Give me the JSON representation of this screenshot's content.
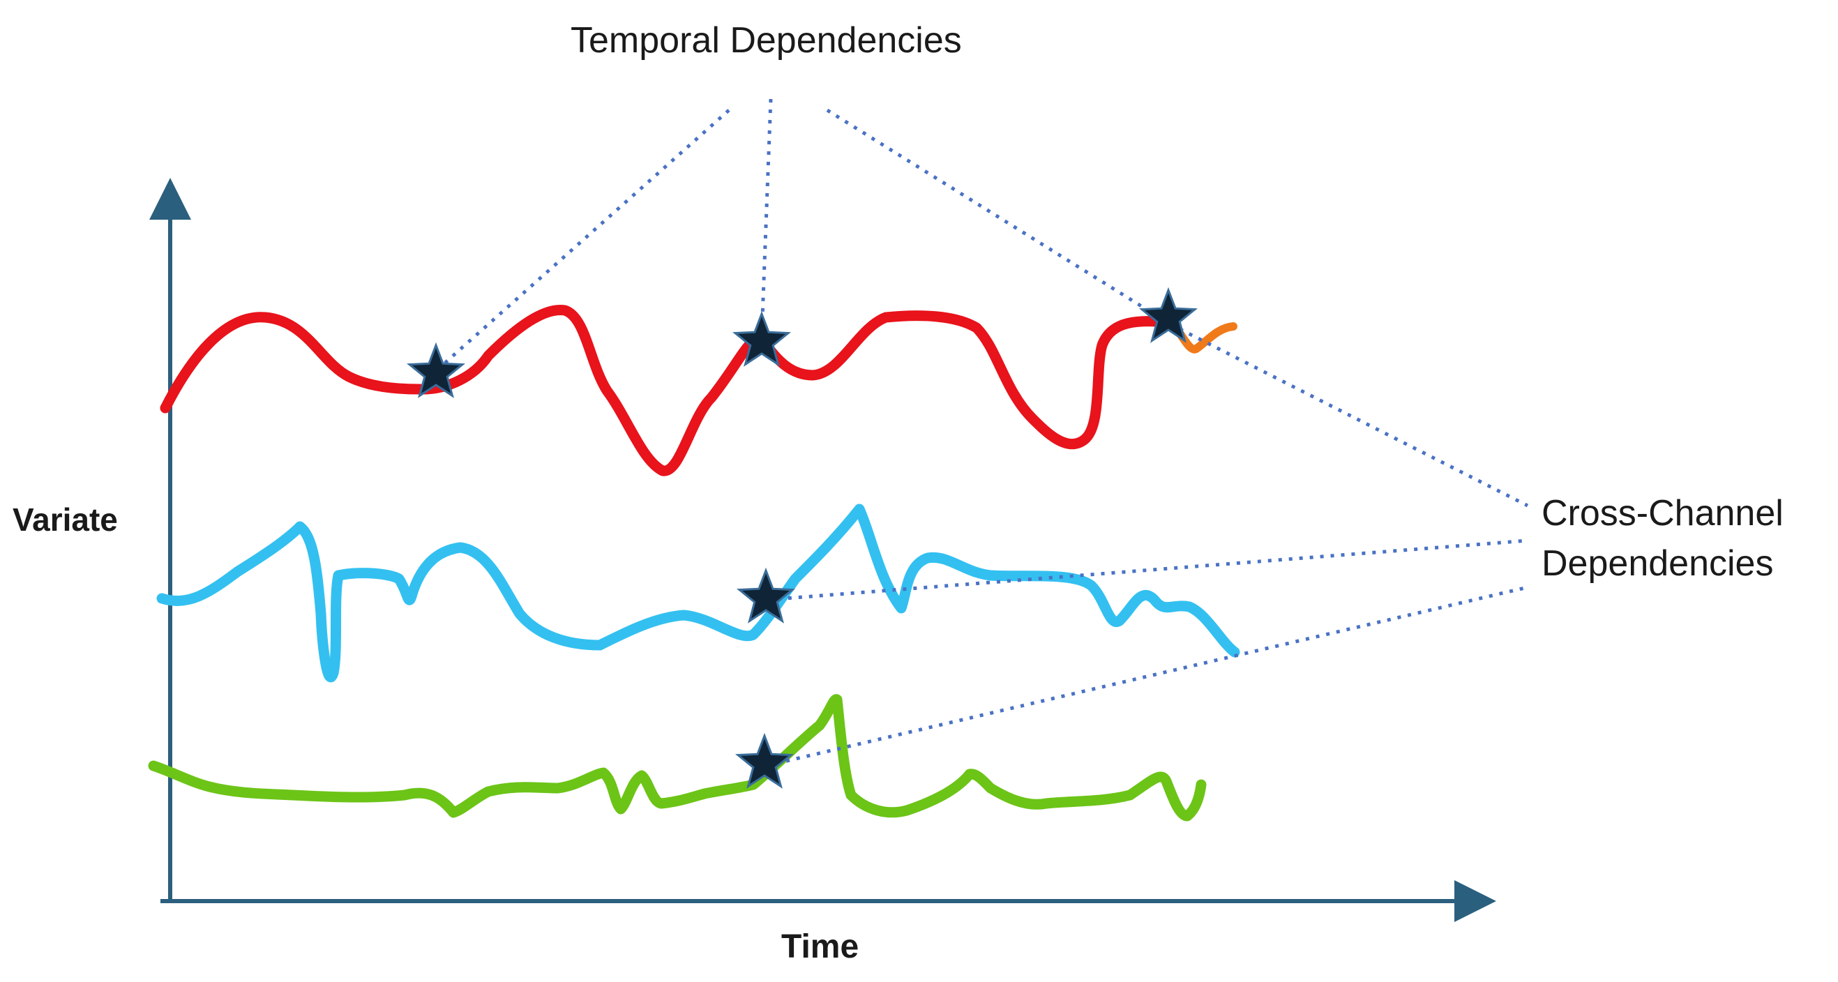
{
  "labels": {
    "temporal": "Temporal Dependencies",
    "cross_line1": "Cross-Channel",
    "cross_line2": "Dependencies",
    "y_axis": "Variate",
    "x_axis": "Time"
  },
  "colors": {
    "axis": "#2b5f7e",
    "series_red": "#e8131b",
    "series_blue": "#33c0f0",
    "series_green": "#6cc417",
    "accent_orange": "#f07a1a",
    "dotted_lines": "#4a72c4",
    "star": "#0f2436"
  },
  "icons": [
    "star-icon"
  ]
}
